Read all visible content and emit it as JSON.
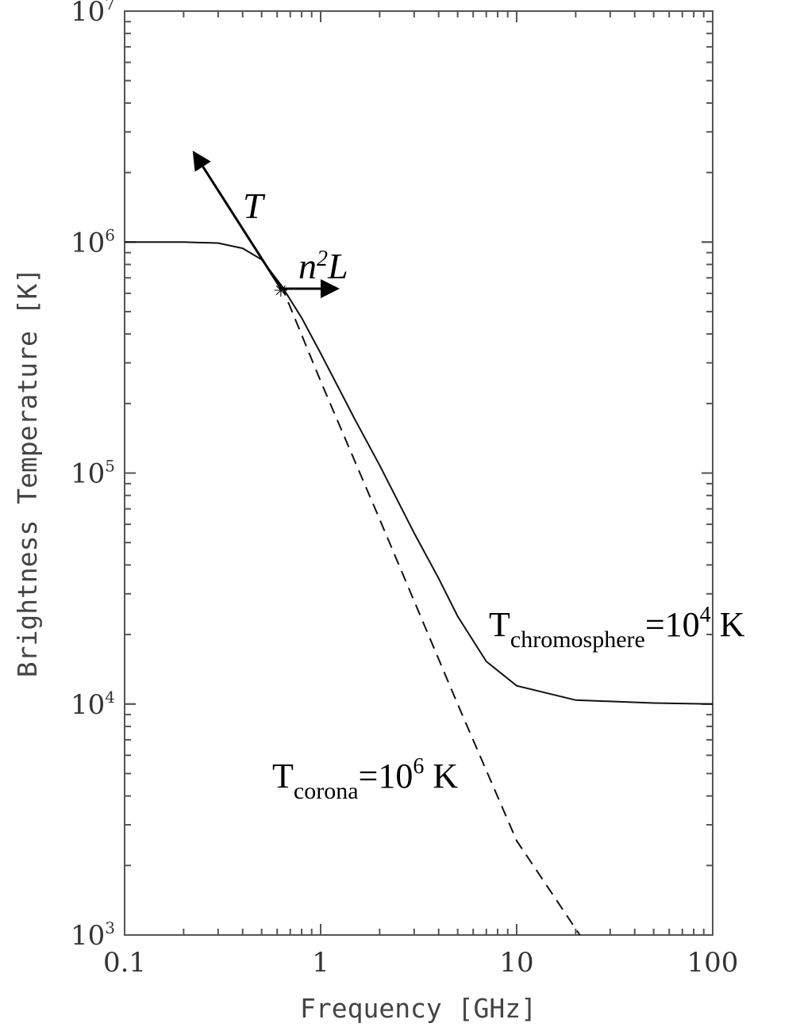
{
  "chart_data": {
    "type": "line",
    "xlabel": "Frequency [GHz]",
    "ylabel": "Brightness Temperature [K]",
    "x_scale": "log",
    "y_scale": "log",
    "xlim": [
      0.1,
      100
    ],
    "ylim": [
      1000,
      10000000
    ],
    "x_ticks": [
      {
        "value": 0.1,
        "label": "0.1"
      },
      {
        "value": 1,
        "label": "1"
      },
      {
        "value": 10,
        "label": "10"
      },
      {
        "value": 100,
        "label": "100"
      }
    ],
    "y_ticks": [
      {
        "value": 1000,
        "base": "10",
        "exp": "3"
      },
      {
        "value": 10000,
        "base": "10",
        "exp": "4"
      },
      {
        "value": 100000,
        "base": "10",
        "exp": "5"
      },
      {
        "value": 1000000,
        "base": "10",
        "exp": "6"
      },
      {
        "value": 10000000,
        "base": "10",
        "exp": "7"
      }
    ],
    "grid": false,
    "series": [
      {
        "style": "solid",
        "x": [
          0.1,
          0.2,
          0.3,
          0.4,
          0.5,
          0.63,
          0.8,
          1.0,
          1.5,
          2.0,
          3.0,
          4.0,
          5.0,
          7.0,
          10.0,
          20.0,
          50.0,
          100.0
        ],
        "y": [
          1000000,
          1000000,
          990000,
          940000,
          840000,
          650000,
          470000,
          330000,
          170000,
          108000,
          55000,
          35000,
          24000,
          15300,
          12000,
          10400,
          10100,
          10000
        ]
      },
      {
        "style": "dashed",
        "x": [
          0.63,
          1.0,
          2.0,
          5.0,
          10.0,
          21.0
        ],
        "y": [
          650000,
          250000,
          63000,
          10000,
          2560,
          1000
        ]
      }
    ],
    "annotations": {
      "T": "T",
      "n2L_n": "n",
      "n2L_sup": "2",
      "n2L_L": "L",
      "chromo_main": "T",
      "chromo_sub": "chromosphere",
      "chromo_eq": "=10",
      "chromo_exp": "4",
      "chromo_unit": " K",
      "corona_main": "T",
      "corona_sub": "corona",
      "corona_eq": "=10",
      "corona_exp": "6",
      "corona_unit": " K"
    },
    "marker": {
      "x": 0.63,
      "y": 650000
    }
  }
}
